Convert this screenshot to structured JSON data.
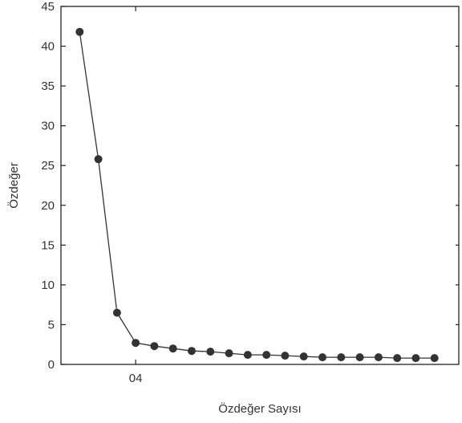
{
  "chart_data": {
    "type": "line",
    "title": "",
    "xlabel": "Özdeğer Sayısı",
    "ylabel": "Özdeğer",
    "ylim": [
      0,
      45
    ],
    "yticks": [
      0,
      5,
      10,
      15,
      20,
      25,
      30,
      35,
      40,
      45
    ],
    "xtick_labels": [
      {
        "x": 4,
        "label": "04"
      }
    ],
    "xlim": [
      0.0,
      21.3
    ],
    "grid": false,
    "series": [
      {
        "x": [
          1,
          2,
          3,
          4,
          5,
          6,
          7,
          8,
          9,
          10,
          11,
          12,
          13,
          14,
          15,
          16,
          17,
          18,
          19,
          20
        ],
        "values": [
          41.8,
          25.8,
          6.5,
          2.7,
          2.3,
          2.0,
          1.7,
          1.6,
          1.4,
          1.2,
          1.2,
          1.1,
          1.0,
          0.9,
          0.9,
          0.9,
          0.9,
          0.8,
          0.8,
          0.8
        ]
      }
    ],
    "colors": {
      "line": "#333333",
      "marker": "#333333",
      "axis": "#222222"
    }
  }
}
